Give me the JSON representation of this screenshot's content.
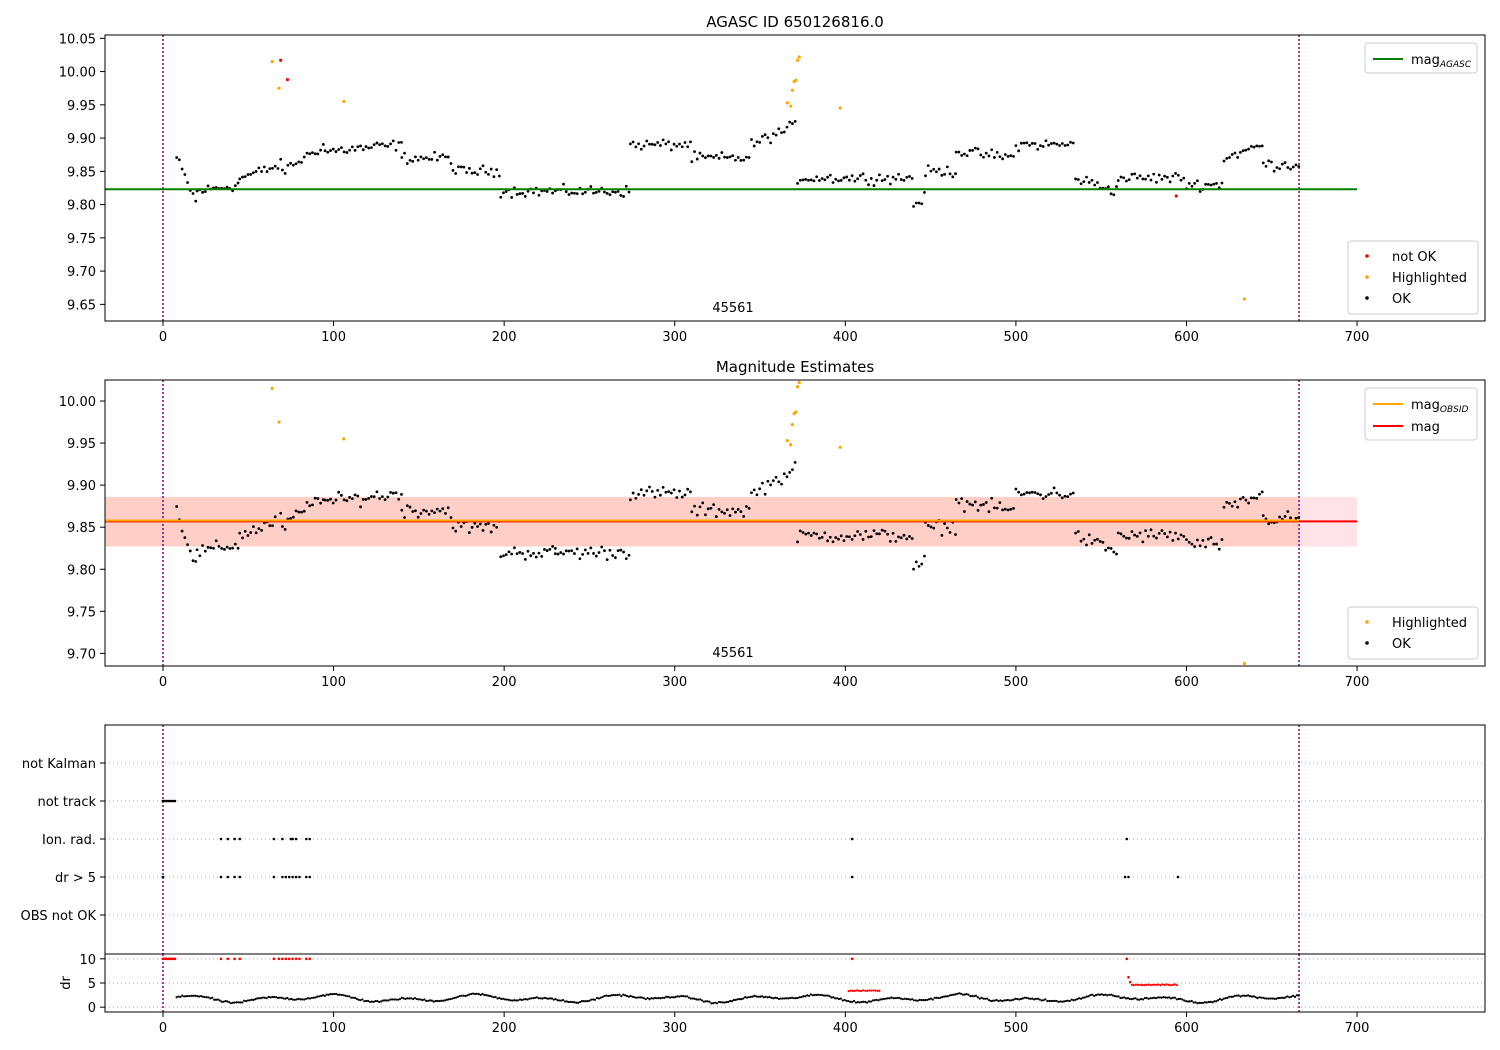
{
  "chart_data": [
    {
      "id": "agasc",
      "type": "scatter",
      "title": "AGASC ID 650126816.0",
      "xlim": [
        -34,
        775
      ],
      "ylim": [
        9.625,
        10.055
      ],
      "xticks": [
        0,
        100,
        200,
        300,
        400,
        500,
        600,
        700
      ],
      "yticks": [
        9.65,
        9.7,
        9.75,
        9.8,
        9.85,
        9.9,
        9.95,
        10.0,
        10.05
      ],
      "ytick_decimals": 2,
      "grid": false,
      "vlines": [
        0,
        666
      ],
      "vline_color": "#800080",
      "hlines": [
        {
          "y": 9.823,
          "x": [
            -34,
            700
          ],
          "color": "#008000",
          "name": "mag_AGASC"
        }
      ],
      "band": null,
      "obsid_label": {
        "text": "45561",
        "x": 333
      },
      "series": [
        {
          "name": "not OK",
          "color": "#ff0000",
          "x": [
            69,
            73,
            594
          ],
          "y": [
            10.017,
            9.988,
            9.813
          ]
        },
        {
          "name": "Highlighted",
          "color": "#ffa500",
          "x": [
            64,
            68,
            106,
            366,
            368,
            369,
            370,
            371,
            372,
            373,
            397,
            634
          ],
          "y": [
            10.015,
            9.975,
            9.955,
            9.953,
            9.948,
            9.972,
            9.985,
            9.987,
            10.017,
            10.022,
            9.945,
            9.658
          ]
        },
        {
          "name": "OK",
          "color": "#000000",
          "noise": 0.012,
          "clip": [
            9.78,
            9.94
          ],
          "segments": [
            [
              8,
              20,
              9.87,
              9.8
            ],
            [
              20,
              45,
              9.82,
              9.83
            ],
            [
              45,
              70,
              9.84,
              9.86
            ],
            [
              70,
              95,
              9.85,
              9.89
            ],
            [
              95,
              140,
              9.88,
              9.89
            ],
            [
              140,
              170,
              9.87,
              9.87
            ],
            [
              170,
              198,
              9.85,
              9.85
            ],
            [
              198,
              230,
              9.82,
              9.82
            ],
            [
              230,
              274,
              9.82,
              9.82
            ],
            [
              274,
              310,
              9.89,
              9.89
            ],
            [
              310,
              345,
              9.87,
              9.87
            ],
            [
              345,
              372,
              9.89,
              9.92
            ],
            [
              372,
              440,
              9.84,
              9.84
            ],
            [
              440,
              447,
              9.8,
              9.81
            ],
            [
              447,
              465,
              9.85,
              9.85
            ],
            [
              465,
              500,
              9.88,
              9.87
            ],
            [
              500,
              535,
              9.89,
              9.89
            ],
            [
              535,
              560,
              9.84,
              9.82
            ],
            [
              560,
              600,
              9.84,
              9.84
            ],
            [
              600,
              622,
              9.83,
              9.83
            ],
            [
              622,
              645,
              9.87,
              9.89
            ],
            [
              645,
              666,
              9.86,
              9.86
            ]
          ]
        }
      ],
      "legend": [
        {
          "label": "mag",
          "sub": "AGASC",
          "kind": "line",
          "color": "#008000",
          "pos": "top-right"
        },
        {
          "label": "not OK",
          "kind": "marker",
          "color": "#ff0000",
          "pos": "bottom-right"
        },
        {
          "label": "Highlighted",
          "kind": "marker",
          "color": "#ffa500",
          "pos": "bottom-right"
        },
        {
          "label": "OK",
          "kind": "marker",
          "color": "#000000",
          "pos": "bottom-right"
        }
      ]
    },
    {
      "id": "estimates",
      "type": "scatter",
      "title": "Magnitude Estimates",
      "xlim": [
        -34,
        775
      ],
      "ylim": [
        9.685,
        10.025
      ],
      "xticks": [
        0,
        100,
        200,
        300,
        400,
        500,
        600,
        700
      ],
      "yticks": [
        9.7,
        9.75,
        9.8,
        9.85,
        9.9,
        9.95,
        10.0
      ],
      "ytick_decimals": 2,
      "grid": false,
      "vlines": [
        0,
        666
      ],
      "vline_color": "#800080",
      "hlines": [
        {
          "y": 9.857,
          "x": [
            -34,
            700
          ],
          "color": "#ff0000",
          "name": "mag"
        },
        {
          "y": 9.858,
          "x": [
            -34,
            666
          ],
          "color": "#ffa500",
          "name": "mag_OBSID"
        }
      ],
      "band": {
        "x": [
          -34,
          700
        ],
        "y": [
          9.827,
          9.886
        ],
        "color": "#ffc0cb"
      },
      "band2": {
        "x": [
          -34,
          666
        ],
        "y": [
          9.827,
          9.886
        ],
        "color": "#ffa07a"
      },
      "obsid_label": {
        "text": "45561",
        "x": 333
      },
      "series": [
        {
          "name": "Highlighted",
          "color": "#ffa500",
          "x": [
            64,
            68,
            106,
            366,
            368,
            369,
            370,
            371,
            372,
            373,
            397,
            634
          ],
          "y": [
            10.015,
            9.975,
            9.955,
            9.953,
            9.948,
            9.972,
            9.985,
            9.987,
            10.017,
            10.022,
            9.945,
            9.688
          ]
        },
        {
          "name": "OK",
          "color": "#000000",
          "noise": 0.012,
          "clip": [
            9.78,
            9.94
          ],
          "segments": [
            [
              8,
              20,
              9.87,
              9.8
            ],
            [
              20,
              45,
              9.82,
              9.83
            ],
            [
              45,
              70,
              9.84,
              9.86
            ],
            [
              70,
              95,
              9.85,
              9.89
            ],
            [
              95,
              140,
              9.88,
              9.89
            ],
            [
              140,
              170,
              9.87,
              9.87
            ],
            [
              170,
              198,
              9.85,
              9.85
            ],
            [
              198,
              230,
              9.82,
              9.82
            ],
            [
              230,
              274,
              9.82,
              9.82
            ],
            [
              274,
              310,
              9.89,
              9.89
            ],
            [
              310,
              345,
              9.87,
              9.87
            ],
            [
              345,
              372,
              9.89,
              9.92
            ],
            [
              372,
              440,
              9.84,
              9.84
            ],
            [
              440,
              447,
              9.8,
              9.81
            ],
            [
              447,
              465,
              9.85,
              9.85
            ],
            [
              465,
              500,
              9.88,
              9.87
            ],
            [
              500,
              535,
              9.89,
              9.89
            ],
            [
              535,
              560,
              9.84,
              9.82
            ],
            [
              560,
              600,
              9.84,
              9.84
            ],
            [
              600,
              622,
              9.83,
              9.83
            ],
            [
              622,
              645,
              9.87,
              9.89
            ],
            [
              645,
              666,
              9.86,
              9.86
            ]
          ]
        }
      ],
      "legend": [
        {
          "label": "mag",
          "sub": "OBSID",
          "kind": "line",
          "color": "#ffa500",
          "pos": "top-right"
        },
        {
          "label": "mag",
          "kind": "line",
          "color": "#ff0000",
          "pos": "top-right"
        },
        {
          "label": "Highlighted",
          "kind": "marker",
          "color": "#ffa500",
          "pos": "bottom-right"
        },
        {
          "label": "OK",
          "kind": "marker",
          "color": "#000000",
          "pos": "bottom-right"
        }
      ]
    },
    {
      "id": "flags",
      "type": "scatter",
      "title": "",
      "xlim": [
        -34,
        775
      ],
      "categories": [
        "not Kalman",
        "not track",
        "Ion. rad.",
        "dr > 5",
        "OBS not OK"
      ],
      "grid": "dotted",
      "vlines": [
        0,
        666
      ],
      "vline_color": "#800080",
      "series": [
        {
          "category": "not track",
          "color": "#000000",
          "x": [
            0,
            1,
            2,
            3,
            4,
            5,
            6,
            7
          ]
        },
        {
          "category": "Ion. rad.",
          "color": "#000000",
          "x": [
            34,
            38,
            42,
            45,
            65,
            70,
            75,
            76,
            78,
            84,
            86,
            404,
            565
          ]
        },
        {
          "category": "dr > 5",
          "color": "#000000",
          "x": [
            0,
            34,
            38,
            42,
            45,
            65,
            70,
            72,
            74,
            76,
            78,
            80,
            84,
            86,
            404,
            564,
            566,
            595
          ]
        }
      ]
    },
    {
      "id": "dr",
      "type": "scatter",
      "title": "",
      "ylabel": "dr",
      "xlim": [
        -34,
        775
      ],
      "ylim": [
        -1,
        11
      ],
      "xticks": [
        0,
        100,
        200,
        300,
        400,
        500,
        600,
        700
      ],
      "yticks": [
        0,
        5,
        10
      ],
      "ytick_decimals": 0,
      "grid": "dotted",
      "vlines": [
        0,
        666
      ],
      "vline_color": "#800080",
      "series": [
        {
          "name": "red",
          "color": "#ff0000",
          "x": [
            0,
            1,
            2,
            3,
            4,
            5,
            6,
            7,
            34,
            38,
            42,
            45,
            65,
            68,
            70,
            72,
            74,
            76,
            78,
            80,
            84,
            86,
            404,
            565,
            566,
            567
          ],
          "y": [
            10,
            10,
            10,
            10,
            10,
            10,
            10,
            10,
            10,
            10,
            10,
            10,
            10,
            10,
            10,
            10,
            10,
            10,
            10,
            10,
            10,
            10,
            10,
            10,
            6.2,
            5.2
          ]
        },
        {
          "name": "red-band",
          "color": "#ff0000",
          "from": 568,
          "to": 595,
          "level": 4.6
        },
        {
          "name": "red-band2",
          "color": "#ff0000",
          "from": 402,
          "to": 420,
          "level": 3.4
        },
        {
          "name": "black",
          "color": "#000000",
          "from": 8,
          "to": 666,
          "base": 1.8,
          "amp": 0.9
        }
      ]
    }
  ]
}
